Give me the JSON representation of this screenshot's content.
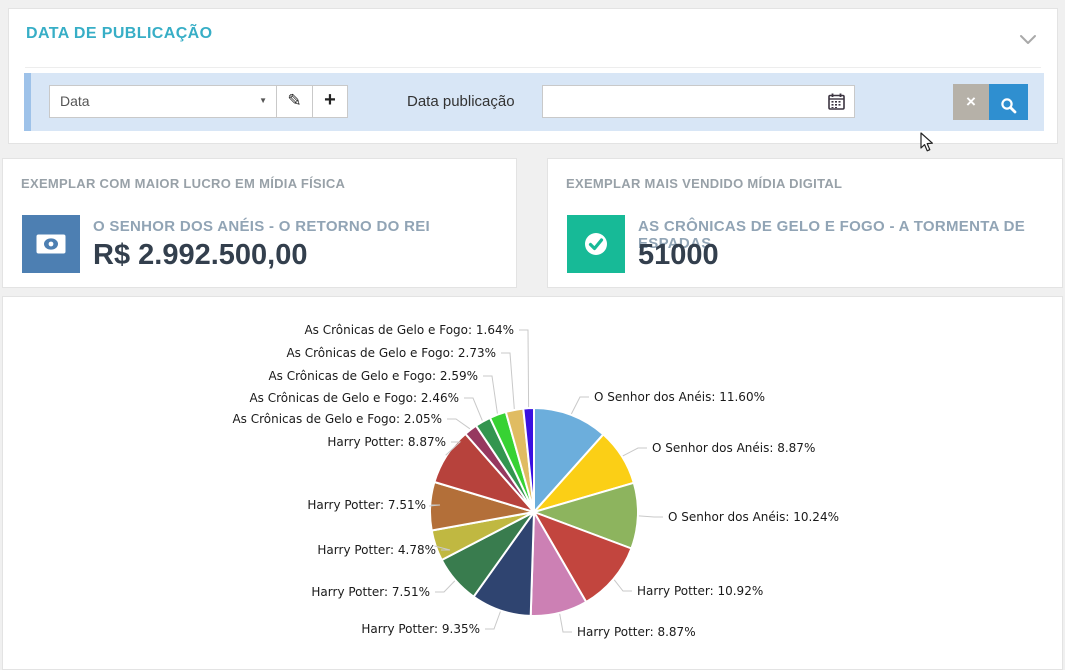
{
  "panel": {
    "title": "DATA DE PUBLICAÇÃO",
    "filter": {
      "field_select": {
        "value": "Data",
        "caret": "▼"
      },
      "date_label": "Data publicação",
      "date_input": {
        "value": "",
        "placeholder": ""
      },
      "bar_color": "#d8e6f6",
      "accent_stripe_color": "#9ec2e9",
      "clear_button_color": "#b6b1a8",
      "search_button_color": "#2f8fd0"
    }
  },
  "cards": [
    {
      "title": "EXEMPLAR COM MAIOR LUCRO EM MÍDIA FÍSICA",
      "icon": "banknote-icon",
      "accent_color": "#4d7fb2",
      "subtitle": "O SENHOR DOS ANÉIS - O RETORNO DO REI",
      "value": "R$ 2.992.500,00"
    },
    {
      "title": "EXEMPLAR MAIS VENDIDO MÍDIA DIGITAL",
      "icon": "check-circle-icon",
      "accent_color": "#17ba97",
      "subtitle": "AS CRÔNICAS DE GELO E FOGO - A TORMENTA DE ESPADAS",
      "value": "51000"
    }
  ],
  "chart_data": {
    "type": "pie",
    "title": "",
    "legend_position": "none",
    "start_angle_deg": 0,
    "direction": "clockwise",
    "slices": [
      {
        "label": "O Senhor dos Anéis",
        "value": 11.6,
        "display": "O Senhor dos Anéis: 11.60%",
        "color": "#6caedc"
      },
      {
        "label": "O Senhor dos Anéis",
        "value": 8.87,
        "display": "O Senhor dos Anéis: 8.87%",
        "color": "#fbcf16"
      },
      {
        "label": "O Senhor dos Anéis",
        "value": 10.24,
        "display": "O Senhor dos Anéis: 10.24%",
        "color": "#8db45e"
      },
      {
        "label": "Harry Potter",
        "value": 10.92,
        "display": "Harry Potter: 10.92%",
        "color": "#c2453e"
      },
      {
        "label": "Harry Potter",
        "value": 8.87,
        "display": "Harry Potter: 8.87%",
        "color": "#cc80b4"
      },
      {
        "label": "Harry Potter",
        "value": 9.35,
        "display": "Harry Potter: 9.35%",
        "color": "#2f4470"
      },
      {
        "label": "Harry Potter",
        "value": 7.51,
        "display": "Harry Potter: 7.51%",
        "color": "#397c4e"
      },
      {
        "label": "Harry Potter",
        "value": 4.78,
        "display": "Harry Potter: 4.78%",
        "color": "#c0b841"
      },
      {
        "label": "Harry Potter",
        "value": 7.51,
        "display": "Harry Potter: 7.51%",
        "color": "#b36f39"
      },
      {
        "label": "Harry Potter",
        "value": 8.87,
        "display": "Harry Potter: 8.87%",
        "color": "#b7423c"
      },
      {
        "label": "As Crônicas de Gelo e Fogo",
        "value": 2.05,
        "display": "As Crônicas de Gelo e Fogo: 2.05%",
        "color": "#96385f"
      },
      {
        "label": "As Crônicas de Gelo e Fogo",
        "value": 2.46,
        "display": "As Crônicas de Gelo e Fogo: 2.46%",
        "color": "#33954f"
      },
      {
        "label": "As Crônicas de Gelo e Fogo",
        "value": 2.59,
        "display": "As Crônicas de Gelo e Fogo: 2.59%",
        "color": "#37d233"
      },
      {
        "label": "As Crônicas de Gelo e Fogo",
        "value": 2.73,
        "display": "As Crônicas de Gelo e Fogo: 2.73%",
        "color": "#e0bc62"
      },
      {
        "label": "As Crônicas de Gelo e Fogo",
        "value": 1.64,
        "display": "As Crônicas de Gelo e Fogo: 1.64%",
        "color": "#3a10e0"
      }
    ]
  }
}
